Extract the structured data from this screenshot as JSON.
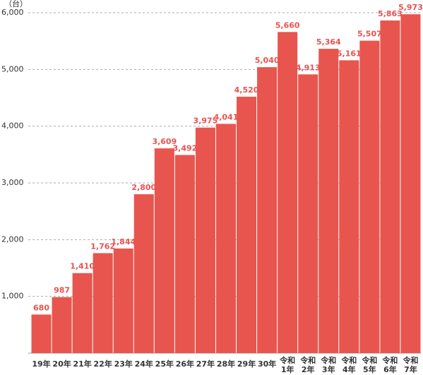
{
  "chart_data": {
    "type": "bar",
    "y_unit": "（台）",
    "categories": [
      "19年",
      "20年",
      "21年",
      "22年",
      "23年",
      "24年",
      "25年",
      "26年",
      "27年",
      "28年",
      "29年",
      "30年",
      "令和\n1年",
      "令和\n2年",
      "令和\n3年",
      "令和\n4年",
      "令和\n5年",
      "令和\n6年",
      "令和\n7年"
    ],
    "values": [
      680,
      987,
      1410,
      1762,
      1844,
      2800,
      3609,
      3492,
      3975,
      4041,
      4520,
      5040,
      5660,
      4913,
      5364,
      5161,
      5507,
      5863,
      5973
    ],
    "value_labels": [
      "680",
      "987",
      "1,410",
      "1,762",
      "1,844",
      "2,800",
      "3,609",
      "3,492",
      "3,975",
      "4,041",
      "4,520",
      "5,040",
      "5,660",
      "4,913",
      "5,364",
      "5,161",
      "5,507",
      "5,863",
      "5,973"
    ],
    "color": "#e8554e",
    "ylim": [
      0,
      6000
    ],
    "yticks": [
      {
        "value": 1000,
        "label": "1,000"
      },
      {
        "value": 2000,
        "label": "2,000"
      },
      {
        "value": 3000,
        "label": "3,000"
      },
      {
        "value": 4000,
        "label": "4,000"
      },
      {
        "value": 5000,
        "label": "5,000"
      },
      {
        "value": 6000,
        "label": "6,000"
      }
    ],
    "grid": true
  }
}
